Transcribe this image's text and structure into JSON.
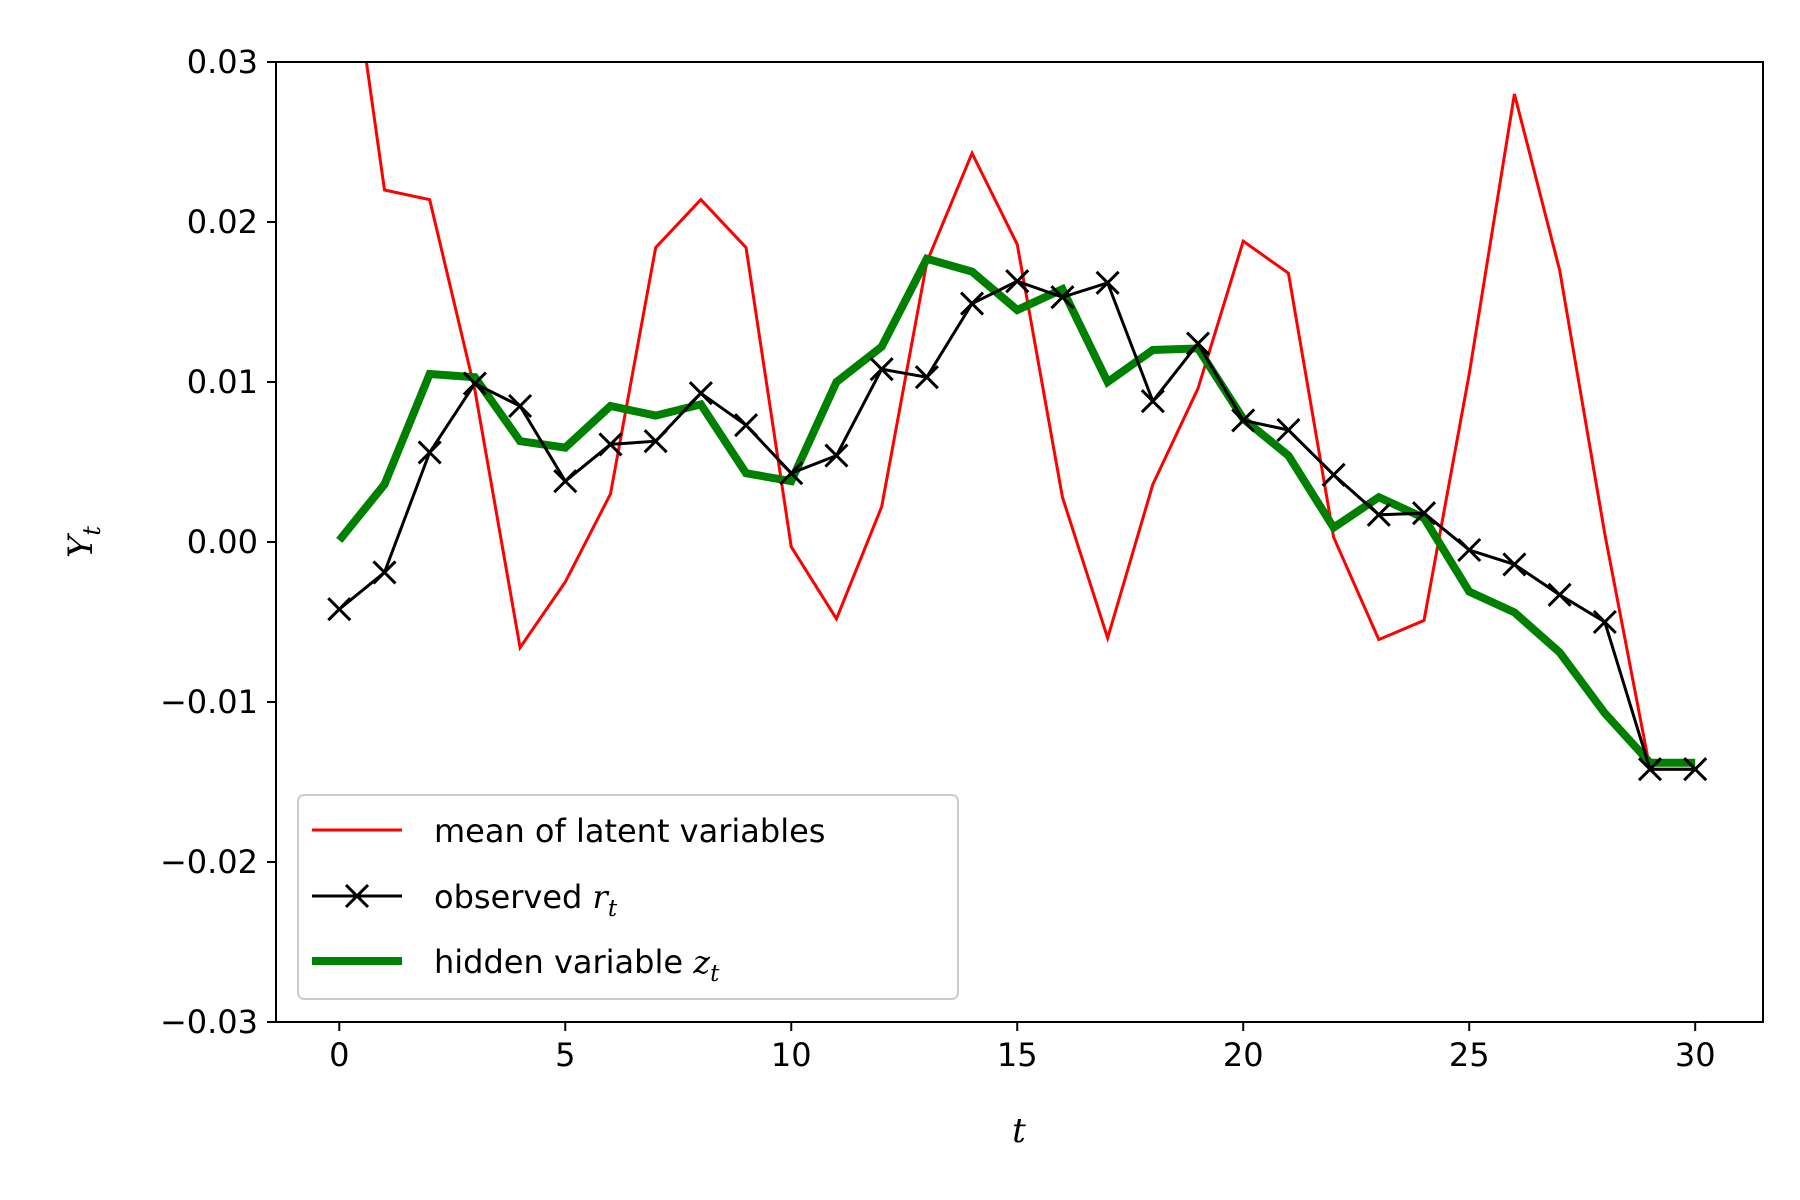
{
  "chart_data": {
    "type": "line",
    "title": "",
    "xlabel": "t",
    "ylabel_main": "Y",
    "ylabel_sub": "t",
    "xlim": [
      -1.4,
      31.5
    ],
    "ylim": [
      -0.03,
      0.03
    ],
    "xticks": [
      0,
      5,
      10,
      15,
      20,
      25,
      30
    ],
    "xtick_labels": [
      "0",
      "5",
      "10",
      "15",
      "20",
      "25",
      "30"
    ],
    "yticks": [
      -0.03,
      -0.02,
      -0.01,
      0.0,
      0.01,
      0.02,
      0.03
    ],
    "ytick_labels": [
      "−0.03",
      "−0.02",
      "−0.01",
      "0.00",
      "0.01",
      "0.02",
      "0.03"
    ],
    "grid": false,
    "legend_position": "lower-left",
    "x": [
      0,
      1,
      2,
      3,
      4,
      5,
      6,
      7,
      8,
      9,
      10,
      11,
      12,
      13,
      14,
      15,
      16,
      17,
      18,
      19,
      20,
      21,
      22,
      23,
      24,
      25,
      26,
      27,
      28,
      29,
      30
    ],
    "series": [
      {
        "name": "mean of latent variables",
        "name_main": "mean of latent variables",
        "name_sub": "",
        "color": "#ff0000",
        "marker": "none",
        "width": "thin",
        "values": [
          0.042,
          0.022,
          0.0214,
          0.0095,
          -0.0066,
          -0.0025,
          0.003,
          0.0184,
          0.0214,
          0.0184,
          -0.0003,
          -0.0048,
          0.0022,
          0.0175,
          0.0243,
          0.0186,
          0.0028,
          -0.006,
          0.0036,
          0.0096,
          0.0188,
          0.0168,
          0.0003,
          -0.0061,
          -0.0049,
          0.0105,
          0.028,
          0.017,
          0.0005,
          -0.0142,
          -0.0142
        ]
      },
      {
        "name": "observed r_t",
        "name_main": "observed ",
        "name_sub": "r",
        "name_sub_index": "t",
        "color": "#000000",
        "marker": "x",
        "width": "medium",
        "values": [
          -0.0042,
          -0.0019,
          0.0056,
          0.0099,
          0.0085,
          0.0038,
          0.0061,
          0.0063,
          0.0093,
          0.0073,
          0.0043,
          0.0054,
          0.0108,
          0.0103,
          0.0149,
          0.0163,
          0.0153,
          0.0162,
          0.0088,
          0.0124,
          0.0076,
          0.007,
          0.0042,
          0.0017,
          0.0018,
          -0.0005,
          -0.0014,
          -0.0033,
          -0.005,
          -0.0142,
          -0.0142
        ]
      },
      {
        "name": "hidden variable z_t",
        "name_main": "hidden variable ",
        "name_sub": "z",
        "name_sub_index": "t",
        "color": "#008000",
        "marker": "none",
        "width": "thick",
        "values": [
          0.0001,
          0.0036,
          0.0105,
          0.0103,
          0.0063,
          0.0059,
          0.0085,
          0.0079,
          0.0086,
          0.0043,
          0.0038,
          0.01,
          0.0122,
          0.0177,
          0.0169,
          0.0145,
          0.0158,
          0.01,
          0.012,
          0.0121,
          0.0077,
          0.0054,
          0.0009,
          0.0028,
          0.0015,
          -0.0031,
          -0.0044,
          -0.0069,
          -0.0107,
          -0.0138,
          -0.0138
        ]
      }
    ]
  }
}
